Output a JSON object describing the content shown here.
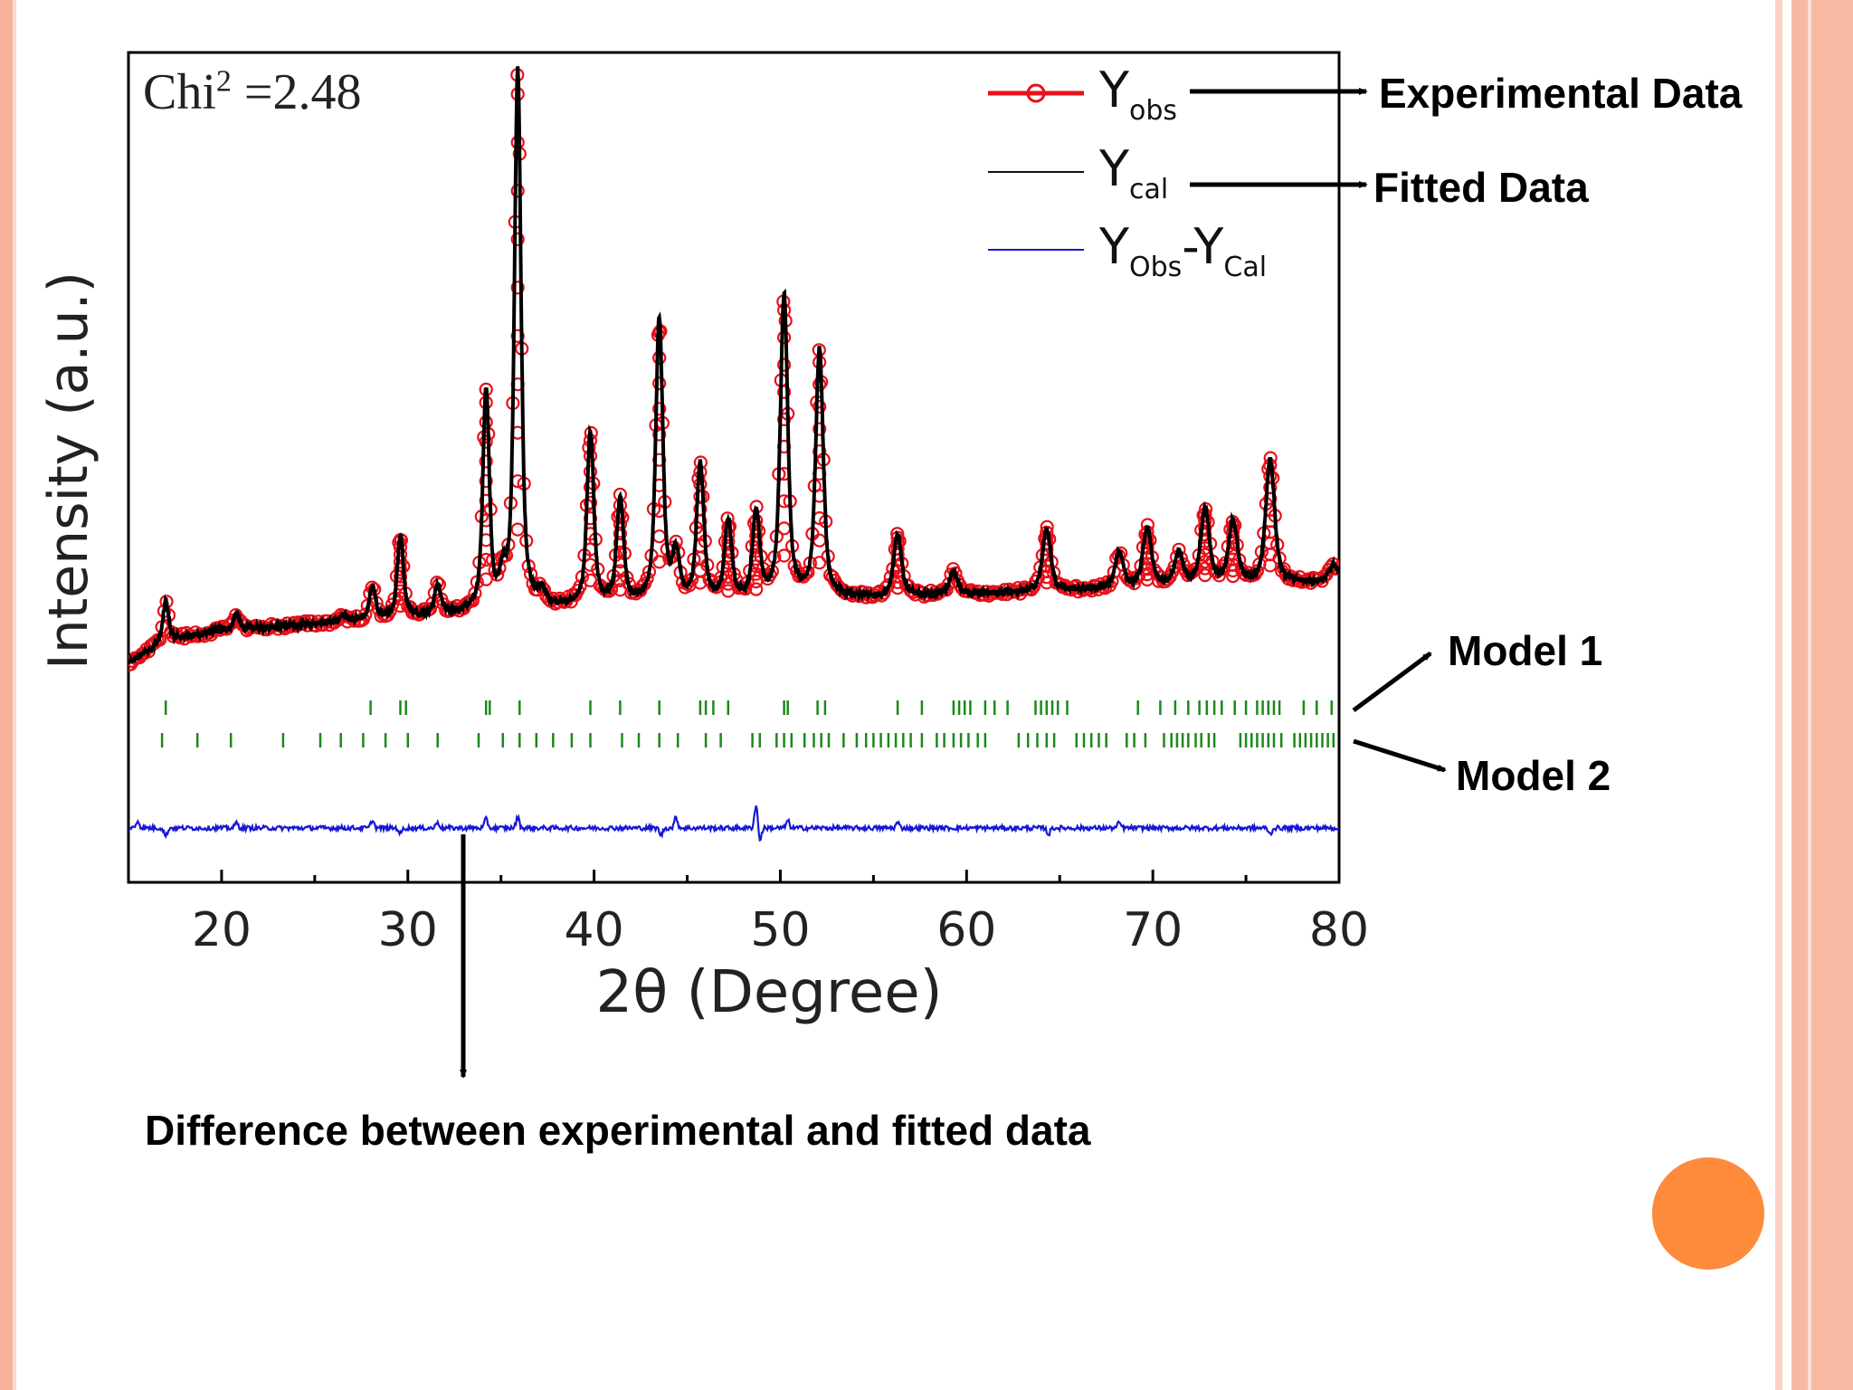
{
  "slide": {
    "colors": {
      "frame": "#f4b29d",
      "accent_circle": "#fe8a3c"
    }
  },
  "annotations": {
    "experimental": "Experimental Data",
    "fitted": "Fitted Data",
    "model1": "Model 1",
    "model2": "Model 2",
    "difference": "Difference between experimental and fitted data"
  },
  "chart_data": {
    "type": "line",
    "xlabel": "2θ (Degree)",
    "ylabel": "Intensity (a.u.)",
    "xlim": [
      15,
      80
    ],
    "xticks": [
      20,
      30,
      40,
      50,
      60,
      70,
      80
    ],
    "xtick_labels": [
      "20",
      "30",
      "40",
      "50",
      "60",
      "70",
      "80"
    ],
    "grid": false,
    "legend_position": "top-right",
    "annotation": {
      "chi_label": "Chi",
      "chi_sup": "2",
      "chi_value": " =2.48"
    },
    "legend": [
      {
        "main": "Y",
        "sub": "obs"
      },
      {
        "main": "Y",
        "sub": "cal"
      },
      {
        "main": "Y",
        "sub": "Obs",
        "main2": "-Y",
        "sub2": "Cal"
      }
    ],
    "colors": {
      "obs": "#e8101a",
      "cal": "#000000",
      "diff": "#1717d6",
      "bragg": "#1a8a1a"
    },
    "series": [
      {
        "name": "Yobs",
        "style": "circles"
      },
      {
        "name": "Ycal",
        "style": "line"
      },
      {
        "name": "Yobs-Ycal",
        "style": "line"
      }
    ],
    "background": [
      [
        15,
        2
      ],
      [
        17,
        9
      ],
      [
        20,
        12
      ],
      [
        25,
        14
      ],
      [
        30,
        16
      ],
      [
        35,
        18
      ],
      [
        40,
        19.5
      ],
      [
        50,
        21
      ],
      [
        60,
        23
      ],
      [
        70,
        25
      ],
      [
        75,
        26
      ],
      [
        80,
        27
      ]
    ],
    "peaks": [
      {
        "x": 17.0,
        "h": 12
      },
      {
        "x": 20.8,
        "h": 5
      },
      {
        "x": 26.5,
        "h": 2
      },
      {
        "x": 28.1,
        "h": 10
      },
      {
        "x": 29.6,
        "h": 25
      },
      {
        "x": 31.6,
        "h": 9
      },
      {
        "x": 34.2,
        "h": 67
      },
      {
        "x": 35.1,
        "h": 8
      },
      {
        "x": 35.9,
        "h": 165
      },
      {
        "x": 37.2,
        "h": 4
      },
      {
        "x": 39.8,
        "h": 53
      },
      {
        "x": 41.4,
        "h": 32
      },
      {
        "x": 43.5,
        "h": 87
      },
      {
        "x": 44.4,
        "h": 14
      },
      {
        "x": 45.7,
        "h": 42
      },
      {
        "x": 47.2,
        "h": 24
      },
      {
        "x": 48.7,
        "h": 26
      },
      {
        "x": 50.2,
        "h": 93
      },
      {
        "x": 52.1,
        "h": 76
      },
      {
        "x": 56.3,
        "h": 19
      },
      {
        "x": 59.3,
        "h": 7
      },
      {
        "x": 64.3,
        "h": 19
      },
      {
        "x": 68.2,
        "h": 11
      },
      {
        "x": 69.7,
        "h": 18
      },
      {
        "x": 71.4,
        "h": 10
      },
      {
        "x": 72.8,
        "h": 23
      },
      {
        "x": 74.3,
        "h": 19
      },
      {
        "x": 76.3,
        "h": 38
      },
      {
        "x": 79.7,
        "h": 5
      }
    ],
    "bragg_model1": [
      17.0,
      28.0,
      29.6,
      29.9,
      34.2,
      34.4,
      36.0,
      39.8,
      41.4,
      43.5,
      45.7,
      46.0,
      46.4,
      47.2,
      50.2,
      50.4,
      52.0,
      52.4,
      56.3,
      57.6,
      59.3,
      59.6,
      59.9,
      60.2,
      61.0,
      61.5,
      62.2,
      63.7,
      64.0,
      64.3,
      64.6,
      64.9,
      65.4,
      69.2,
      70.4,
      71.2,
      71.9,
      72.5,
      72.9,
      73.3,
      73.7,
      74.4,
      75.0,
      75.6,
      75.9,
      76.2,
      76.5,
      76.8,
      78.1,
      78.8,
      79.6
    ],
    "bragg_model2": [
      16.8,
      18.7,
      20.5,
      23.3,
      25.3,
      26.4,
      27.6,
      28.8,
      30.0,
      31.6,
      33.8,
      35.1,
      36.0,
      36.9,
      37.8,
      38.8,
      39.8,
      41.5,
      42.4,
      43.5,
      44.5,
      46.0,
      46.8,
      48.5,
      48.9,
      49.8,
      50.2,
      50.6,
      51.3,
      51.8,
      52.2,
      52.6,
      53.4,
      54.1,
      54.6,
      55.0,
      55.4,
      55.8,
      56.2,
      56.6,
      57.0,
      57.6,
      58.4,
      58.8,
      59.3,
      59.7,
      60.1,
      60.6,
      61.0,
      62.8,
      63.3,
      63.8,
      64.3,
      64.7,
      65.9,
      66.3,
      66.7,
      67.1,
      67.5,
      68.6,
      69.0,
      69.6,
      70.6,
      71.0,
      71.3,
      71.6,
      71.9,
      72.3,
      72.6,
      73.0,
      73.3,
      74.7,
      75.0,
      75.3,
      75.6,
      75.9,
      76.2,
      76.5,
      76.9,
      77.6,
      77.9,
      78.2,
      78.5,
      78.8,
      79.1,
      79.4,
      79.7
    ],
    "difference_features": [
      {
        "x": 15.5,
        "h": 8
      },
      {
        "x": 17.0,
        "h": -9
      },
      {
        "x": 20.8,
        "h": 6
      },
      {
        "x": 28.1,
        "h": 9
      },
      {
        "x": 29.6,
        "h": -6
      },
      {
        "x": 31.6,
        "h": 7
      },
      {
        "x": 34.2,
        "h": 10
      },
      {
        "x": 35.9,
        "h": 12
      },
      {
        "x": 43.6,
        "h": -8
      },
      {
        "x": 44.4,
        "h": 12
      },
      {
        "x": 48.7,
        "h": 26
      },
      {
        "x": 48.9,
        "h": -14
      },
      {
        "x": 50.4,
        "h": 8
      },
      {
        "x": 56.3,
        "h": 6
      },
      {
        "x": 64.4,
        "h": -7
      },
      {
        "x": 68.2,
        "h": 6
      },
      {
        "x": 76.3,
        "h": -7
      }
    ]
  }
}
